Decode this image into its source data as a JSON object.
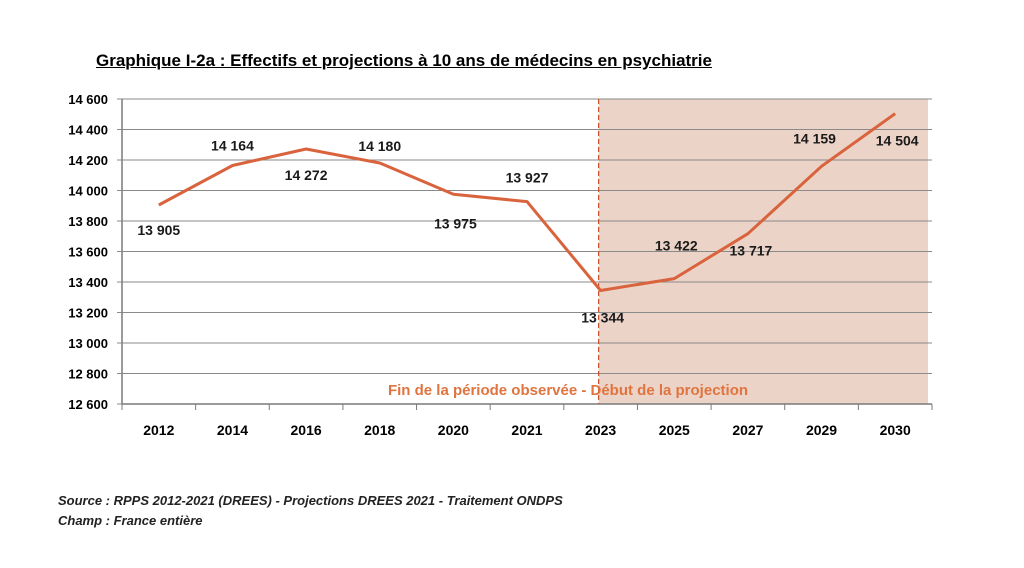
{
  "chart_data": {
    "type": "line",
    "title": "Graphique I-2a : Effectifs et projections à 10 ans de médecins en psychiatrie",
    "categories": [
      "2012",
      "2014",
      "2016",
      "2018",
      "2020",
      "2021",
      "2023",
      "2025",
      "2027",
      "2029",
      "2030"
    ],
    "values": [
      13905,
      14164,
      14272,
      14180,
      13975,
      13927,
      13344,
      13422,
      13717,
      14159,
      14504
    ],
    "data_labels": [
      "13 905",
      "14 164",
      "14 272",
      "14 180",
      "13 975",
      "13 927",
      "13 344",
      "13 422",
      "13 717",
      "14 159",
      "14 504"
    ],
    "ylim": [
      12600,
      14600
    ],
    "yticks": [
      12600,
      12800,
      13000,
      13200,
      13400,
      13600,
      13800,
      14000,
      14200,
      14400,
      14600
    ],
    "ytick_labels": [
      "12 600",
      "12 800",
      "13 000",
      "13 200",
      "13 400",
      "13 600",
      "13 800",
      "14 000",
      "14 200",
      "14 400",
      "14 600"
    ],
    "grid": true,
    "line_color": "#d9633d",
    "projection_start_category": "2023",
    "projection_shade_color": "#ecd3c7",
    "projection_annotation": "Fin de la période observée - Début de la projection",
    "annotation_color": "#e0743f"
  },
  "footer": {
    "source": "Source : RPPS 2012-2021 (DREES) - Projections DREES 2021 - Traitement ONDPS",
    "scope": "Champ : France entière"
  }
}
